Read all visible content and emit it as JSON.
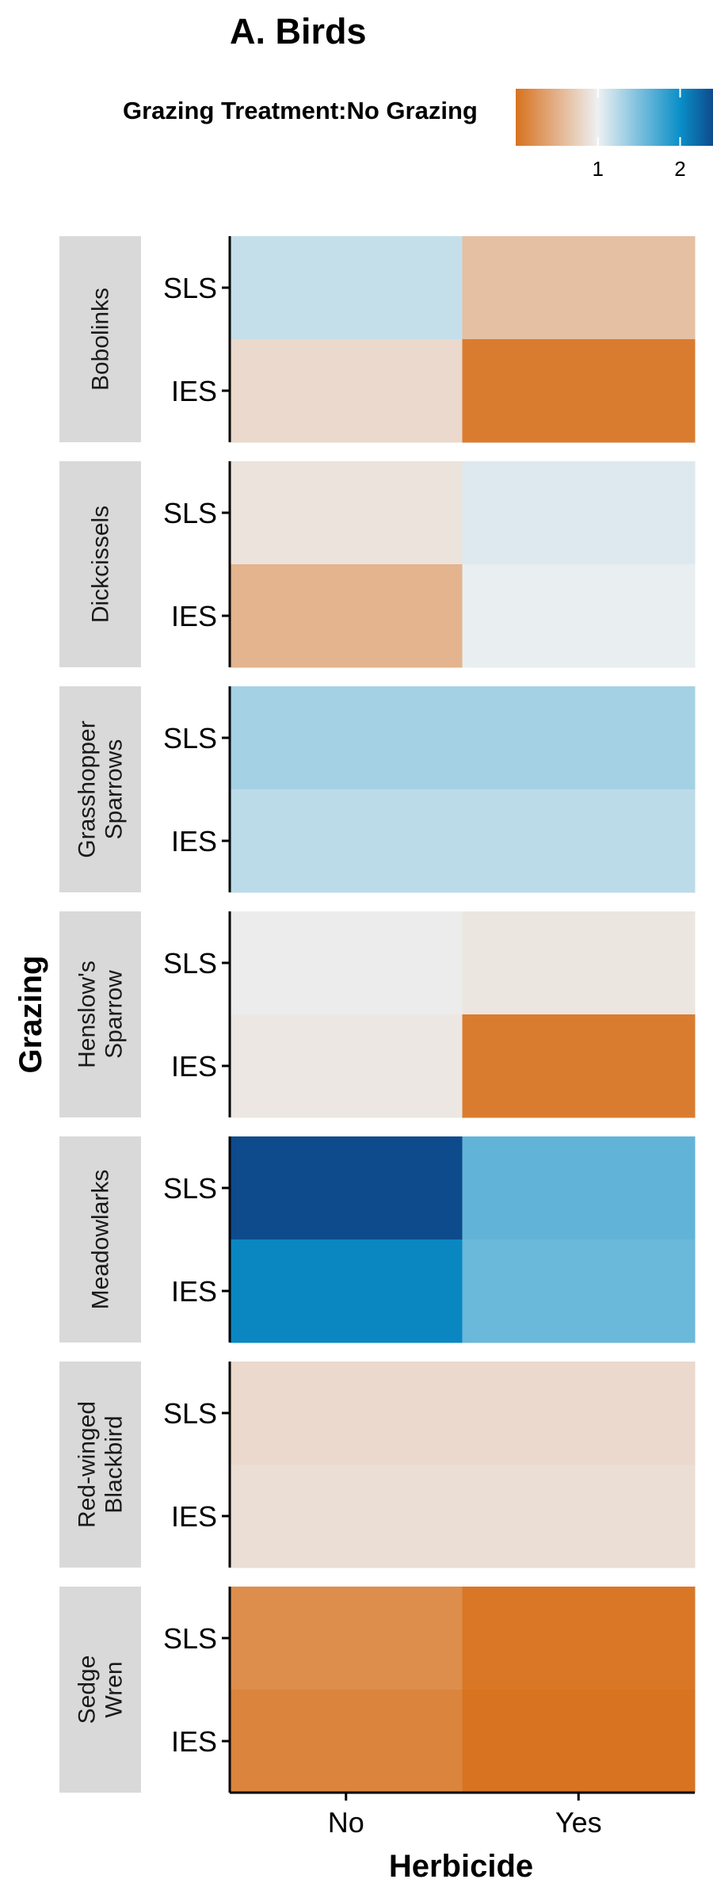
{
  "chart_data": {
    "type": "heatmap",
    "title": "A. Birds",
    "legend_title": "Grazing Treatment:No Grazing",
    "legend_ticks": [
      1,
      2
    ],
    "legend_range": [
      0,
      2.4
    ],
    "colors": {
      "low": "#d8721f",
      "mid": "#eef0f2",
      "high": "#0a8fc8"
    },
    "xlabel": "Herbicide",
    "ylabel": "Grazing",
    "x_categories": [
      "No",
      "Yes"
    ],
    "y_categories": [
      "SLS",
      "IES"
    ],
    "facets": [
      {
        "label": [
          "Bobolinks"
        ],
        "values": [
          [
            1.18,
            0.62
          ],
          [
            0.82,
            0.08
          ]
        ]
      },
      {
        "label": [
          "Dickcissels"
        ],
        "values": [
          [
            0.9,
            1.07
          ],
          [
            0.52,
            1.02
          ]
        ]
      },
      {
        "label": [
          "Grasshopper",
          "Sparrows"
        ],
        "values": [
          [
            1.32,
            1.32
          ],
          [
            1.22,
            1.22
          ]
        ]
      },
      {
        "label": [
          "Henslow's",
          "Sparrow"
        ],
        "values": [
          [
            0.97,
            0.92
          ],
          [
            0.93,
            0.08
          ]
        ]
      },
      {
        "label": [
          "Meadowlarks"
        ],
        "values": [
          [
            2.4,
            1.62
          ],
          [
            2.05,
            1.58
          ]
        ]
      },
      {
        "label": [
          "Red-winged",
          "Blackbird"
        ],
        "values": [
          [
            0.82,
            0.82
          ],
          [
            0.86,
            0.86
          ]
        ]
      },
      {
        "label": [
          "Sedge",
          "Wren"
        ],
        "values": [
          [
            0.22,
            0.04
          ],
          [
            0.14,
            0.01
          ]
        ]
      }
    ]
  }
}
